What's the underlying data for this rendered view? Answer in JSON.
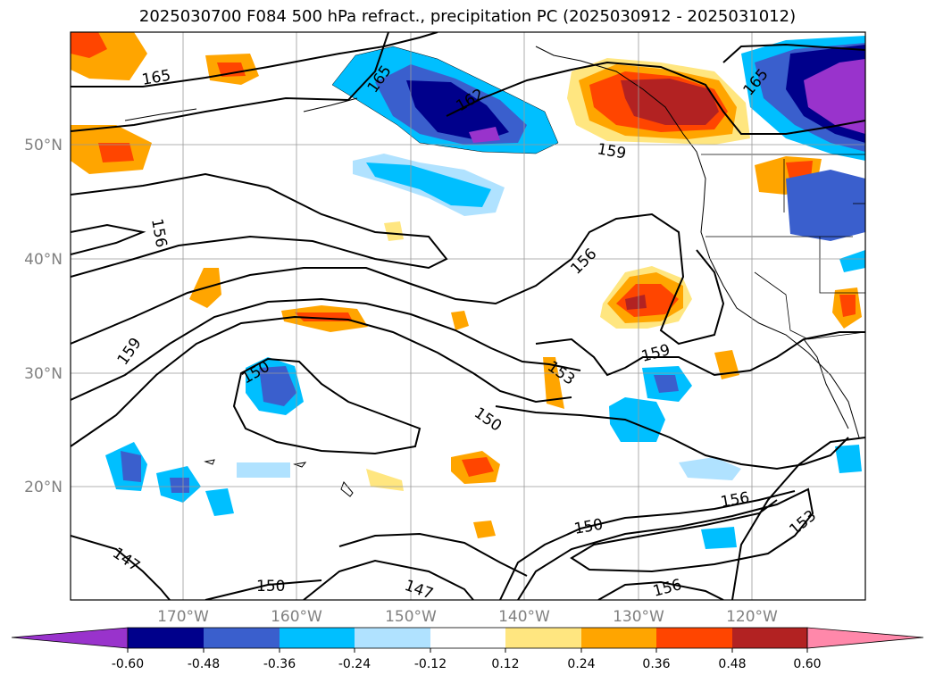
{
  "title": "2025030700 F084 500 hPa refract., precipitation PC (2025030912 - 2025031012)",
  "latitude_labels": [
    "50°N",
    "40°N",
    "30°N",
    "20°N"
  ],
  "longitude_labels": [
    "170°W",
    "160°W",
    "150°W",
    "140°W",
    "130°W",
    "120°W"
  ],
  "contour_labels": [
    "165",
    "165",
    "162",
    "165",
    "159",
    "156",
    "156",
    "159",
    "150",
    "153",
    "150",
    "159",
    "147",
    "150",
    "147",
    "150",
    "156",
    "153",
    "156"
  ],
  "colorbar": {
    "tick_labels": [
      "-0.60",
      "-0.48",
      "-0.36",
      "-0.24",
      "-0.12",
      "0.12",
      "0.24",
      "0.36",
      "0.48",
      "0.60"
    ],
    "colors": [
      "#9933cc",
      "#00008b",
      "#3a5fcd",
      "#00bfff",
      "#b0e2ff",
      "#ffffff",
      "#ffe680",
      "#ffa500",
      "#ff4500",
      "#b22222",
      "#ff88aa"
    ]
  }
}
